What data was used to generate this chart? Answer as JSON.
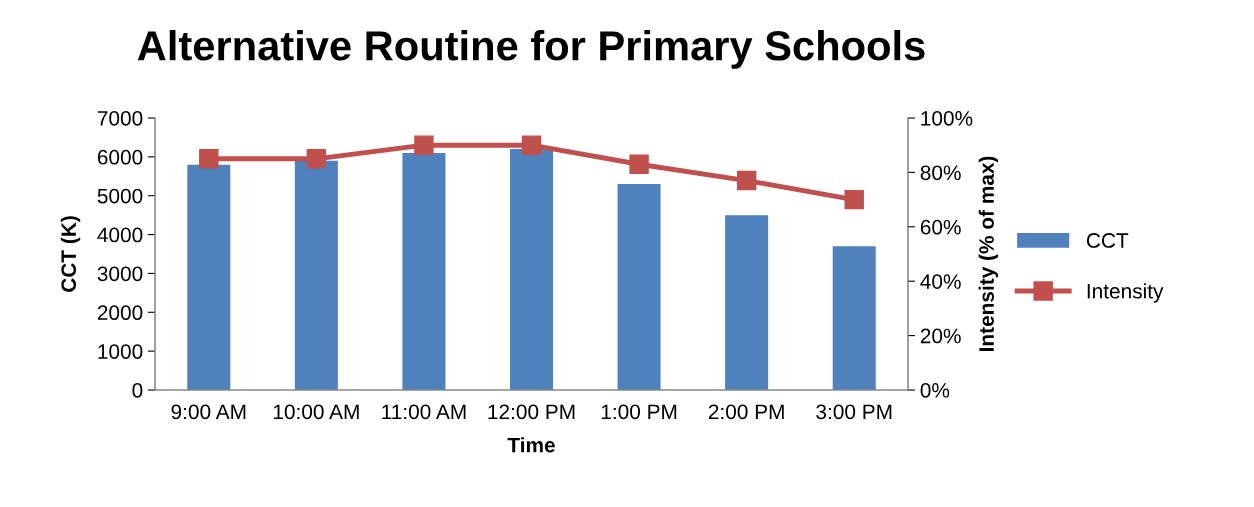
{
  "chart_data": {
    "type": "bar",
    "title": "Alternative Routine for Primary Schools",
    "xlabel": "Time",
    "ylabel": "CCT (K)",
    "y2label": "Intensity (% of max)",
    "categories": [
      "9:00 AM",
      "10:00 AM",
      "11:00 AM",
      "12:00 PM",
      "1:00 PM",
      "2:00 PM",
      "3:00 PM"
    ],
    "series": [
      {
        "name": "CCT",
        "color": "#4f81bd",
        "values": [
          5800,
          5900,
          6100,
          6200,
          5300,
          4500,
          3700
        ]
      },
      {
        "name": "Intensity",
        "color": "#c0504d",
        "type": "line",
        "axis": "y2",
        "marker": "square",
        "values": [
          85,
          85,
          90,
          90,
          83,
          77,
          70
        ]
      }
    ],
    "ylim": [
      0,
      7000
    ],
    "yticks": [
      0,
      1000,
      2000,
      3000,
      4000,
      5000,
      6000,
      7000
    ],
    "y2lim": [
      0,
      100
    ],
    "y2ticks": [
      {
        "value": 0,
        "label": "0%"
      },
      {
        "value": 20,
        "label": "20%"
      },
      {
        "value": 40,
        "label": "40%"
      },
      {
        "value": 60,
        "label": "60%"
      },
      {
        "value": 80,
        "label": "80%"
      },
      {
        "value": 100,
        "label": "100%"
      }
    ],
    "grid": false,
    "legend": "right"
  }
}
